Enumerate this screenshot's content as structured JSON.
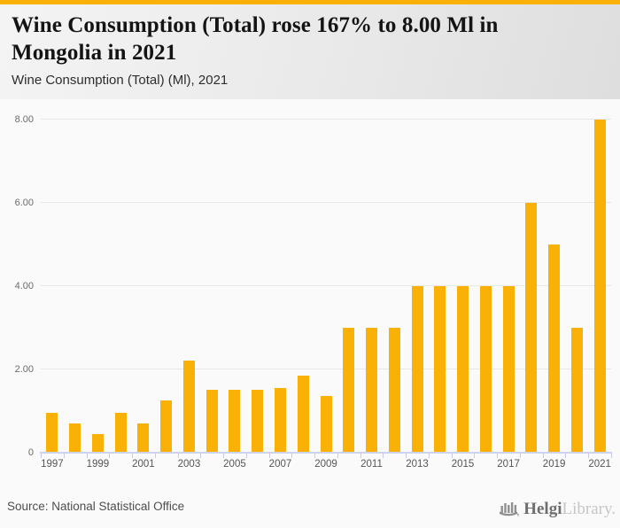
{
  "accent_color": "#FAB106",
  "header": {
    "title": "Wine Consumption (Total) rose 167% to 8.00 Ml in Mongolia in 2021",
    "subtitle": "Wine Consumption (Total) (Ml), 2021"
  },
  "chart_data": {
    "type": "bar",
    "title": "Wine Consumption (Total) rose 167% to 8.00 Ml in Mongolia in 2021",
    "subtitle": "Wine Consumption (Total) (Ml), 2021",
    "unit": "Ml",
    "categories": [
      "1997",
      "1998",
      "1999",
      "2000",
      "2001",
      "2002",
      "2003",
      "2004",
      "2005",
      "2006",
      "2007",
      "2008",
      "2009",
      "2010",
      "2011",
      "2012",
      "2013",
      "2014",
      "2015",
      "2016",
      "2017",
      "2018",
      "2019",
      "2020",
      "2021"
    ],
    "values": [
      0.95,
      0.7,
      0.45,
      0.95,
      0.7,
      1.25,
      2.2,
      1.5,
      1.5,
      1.5,
      1.55,
      1.85,
      1.35,
      3.0,
      3.0,
      3.0,
      4.0,
      4.0,
      4.0,
      4.0,
      4.0,
      6.0,
      5.0,
      3.0,
      8.0
    ],
    "bar_color": "#FAB106",
    "ylim": [
      0,
      8.4
    ],
    "yticks": [
      {
        "v": 8,
        "label": "8.00"
      },
      {
        "v": 6,
        "label": "6.00"
      },
      {
        "v": 4,
        "label": "4.00"
      },
      {
        "v": 2,
        "label": "2.00"
      },
      {
        "v": 0,
        "label": "0"
      }
    ],
    "xtick_labels": [
      "1997",
      "1999",
      "2001",
      "2003",
      "2005",
      "2007",
      "2009",
      "2011",
      "2013",
      "2015",
      "2017",
      "2019",
      "2021"
    ],
    "grid": true,
    "legend": false,
    "grid_color": "#e8e8e8",
    "axis_color": "#c2cbe8"
  },
  "footer": {
    "source": "Source: National Statistical Office",
    "logo": {
      "icon": "bridge-icon",
      "brand_bold": "Helgi",
      "brand_light": "Library."
    }
  }
}
